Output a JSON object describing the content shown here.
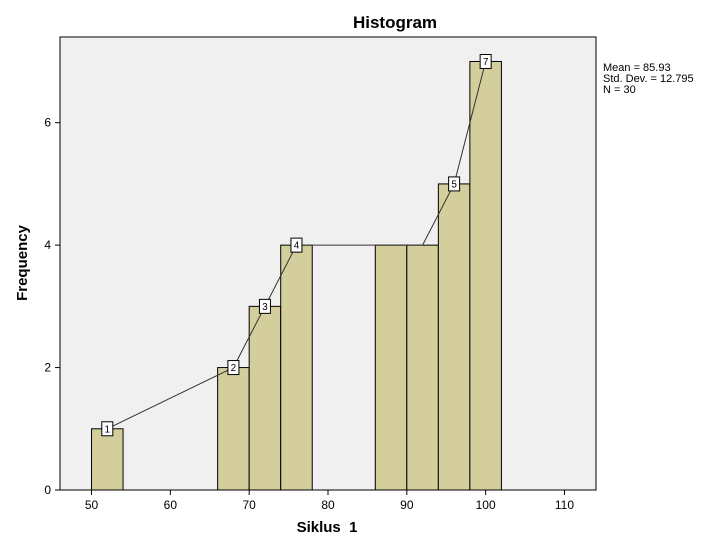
{
  "chart_data": {
    "type": "bar",
    "title": "Histogram",
    "xlabel": "Siklus  1",
    "ylabel": "Frequency",
    "xlim": [
      46,
      114
    ],
    "ylim": [
      0,
      7.4
    ],
    "xticks": [
      50,
      60,
      70,
      80,
      90,
      100,
      110
    ],
    "yticks": [
      0,
      2,
      4,
      6
    ],
    "bars": [
      {
        "x0": 50,
        "x1": 54,
        "value": 1
      },
      {
        "x0": 66,
        "x1": 70,
        "value": 2
      },
      {
        "x0": 70,
        "x1": 74,
        "value": 3
      },
      {
        "x0": 74,
        "x1": 78,
        "value": 4
      },
      {
        "x0": 86,
        "x1": 90,
        "value": 4
      },
      {
        "x0": 90,
        "x1": 94,
        "value": 4
      },
      {
        "x0": 94,
        "x1": 98,
        "value": 5
      },
      {
        "x0": 98,
        "x1": 102,
        "value": 7
      }
    ],
    "line": [
      {
        "x": 52,
        "y": 1,
        "label": "1"
      },
      {
        "x": 68,
        "y": 2,
        "label": "2"
      },
      {
        "x": 72,
        "y": 3,
        "label": "3"
      },
      {
        "x": 76,
        "y": 4,
        "label": "4"
      },
      {
        "x": 92,
        "y": 4,
        "label": ""
      },
      {
        "x": 96,
        "y": 5,
        "label": "5"
      },
      {
        "x": 100,
        "y": 7,
        "label": "7"
      }
    ],
    "stats": [
      "Mean = 85.93",
      "Std. Dev. = 12.795",
      "N = 30"
    ],
    "bar_color": "#d3ce9b",
    "plot_bg": "#f0f0f0"
  }
}
